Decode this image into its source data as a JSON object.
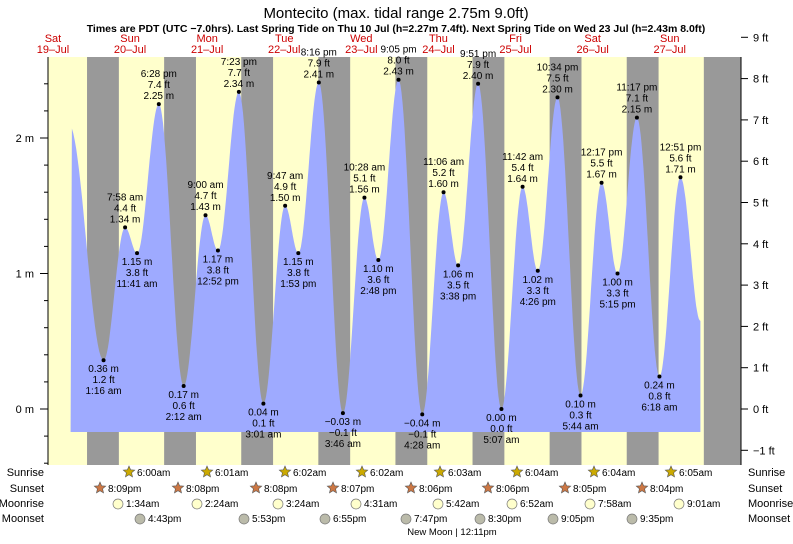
{
  "chart_data": {
    "type": "area",
    "title": "Montecito (max. tidal range 2.75m 9.0ft)",
    "subtitle": "Times are PDT (UTC −7.0hrs). Last Spring Tide on Thu 10 Jul (h=2.27m 7.4ft). Next Spring Tide on Wed 23 Jul (h=2.43m 8.0ft)",
    "days": [
      {
        "dow": "Sat",
        "date": "19–Jul",
        "dark_before": false
      },
      {
        "dow": "Sun",
        "date": "20–Jul",
        "dark_before": true
      },
      {
        "dow": "Mon",
        "date": "21–Jul",
        "dark_before": true
      },
      {
        "dow": "Tue",
        "date": "22–Jul",
        "dark_before": true
      },
      {
        "dow": "Wed",
        "date": "23–Jul",
        "dark_before": true
      },
      {
        "dow": "Thu",
        "date": "24–Jul",
        "dark_before": true
      },
      {
        "dow": "Fri",
        "date": "25–Jul",
        "dark_before": true
      },
      {
        "dow": "Sat",
        "date": "26–Jul",
        "dark_before": true
      },
      {
        "dow": "Sun",
        "date": "27–Jul",
        "dark_before": true
      }
    ],
    "y_axis_m": {
      "ticks": [
        "0 m",
        "1 m",
        "2 m"
      ],
      "values": [
        0,
        1,
        2
      ]
    },
    "y_axis_ft": {
      "ticks": [
        "−1 ft",
        "0 ft",
        "1 ft",
        "2 ft",
        "3 ft",
        "4 ft",
        "5 ft",
        "6 ft",
        "7 ft",
        "8 ft",
        "9 ft"
      ],
      "values": [
        -1,
        0,
        1,
        2,
        3,
        4,
        5,
        6,
        7,
        8,
        9
      ]
    },
    "ylim_m": [
      -0.6,
      2.6
    ],
    "tides": [
      {
        "time": "1:16 am",
        "m": "0.36 m",
        "ft": "1.2 ft",
        "value": 0.36,
        "type": "low"
      },
      {
        "time": "7:58 am",
        "m": "1.34 m",
        "ft": "4.4 ft",
        "value": 1.34,
        "type": "high"
      },
      {
        "time": "11:41 am",
        "m": "1.15 m",
        "ft": "3.8 ft",
        "value": 1.15,
        "type": "low"
      },
      {
        "time": "6:28 pm",
        "m": "2.25 m",
        "ft": "7.4 ft",
        "value": 2.25,
        "type": "high"
      },
      {
        "time": "2:12 am",
        "m": "0.17 m",
        "ft": "0.6 ft",
        "value": 0.17,
        "type": "low"
      },
      {
        "time": "9:00 am",
        "m": "1.43 m",
        "ft": "4.7 ft",
        "value": 1.43,
        "type": "high"
      },
      {
        "time": "12:52 pm",
        "m": "1.17 m",
        "ft": "3.8 ft",
        "value": 1.17,
        "type": "low"
      },
      {
        "time": "7:23 pm",
        "m": "2.34 m",
        "ft": "7.7 ft",
        "value": 2.34,
        "type": "high"
      },
      {
        "time": "3:01 am",
        "m": "0.04 m",
        "ft": "0.1 ft",
        "value": 0.04,
        "type": "low"
      },
      {
        "time": "9:47 am",
        "m": "1.50 m",
        "ft": "4.9 ft",
        "value": 1.5,
        "type": "high"
      },
      {
        "time": "1:53 pm",
        "m": "1.15 m",
        "ft": "3.8 ft",
        "value": 1.15,
        "type": "low"
      },
      {
        "time": "8:16 pm",
        "m": "2.41 m",
        "ft": "7.9 ft",
        "value": 2.41,
        "type": "high"
      },
      {
        "time": "3:46 am",
        "m": "−0.03 m",
        "ft": "−0.1 ft",
        "value": -0.03,
        "type": "low"
      },
      {
        "time": "10:28 am",
        "m": "1.56 m",
        "ft": "5.1 ft",
        "value": 1.56,
        "type": "high"
      },
      {
        "time": "2:48 pm",
        "m": "1.10 m",
        "ft": "3.6 ft",
        "value": 1.1,
        "type": "low"
      },
      {
        "time": "9:05 pm",
        "m": "2.43 m",
        "ft": "8.0 ft",
        "value": 2.43,
        "type": "high"
      },
      {
        "time": "4:28 am",
        "m": "−0.04 m",
        "ft": "−0.1 ft",
        "value": -0.04,
        "type": "low"
      },
      {
        "time": "11:06 am",
        "m": "1.60 m",
        "ft": "5.2 ft",
        "value": 1.6,
        "type": "high"
      },
      {
        "time": "3:38 pm",
        "m": "1.06 m",
        "ft": "3.5 ft",
        "value": 1.06,
        "type": "low"
      },
      {
        "time": "9:51 pm",
        "m": "2.40 m",
        "ft": "7.9 ft",
        "value": 2.4,
        "type": "high"
      },
      {
        "time": "5:07 am",
        "m": "0.00 m",
        "ft": "0.0 ft",
        "value": 0.0,
        "type": "low"
      },
      {
        "time": "11:42 am",
        "m": "1.64 m",
        "ft": "5.4 ft",
        "value": 1.64,
        "type": "high"
      },
      {
        "time": "4:26 pm",
        "m": "1.02 m",
        "ft": "3.3 ft",
        "value": 1.02,
        "type": "low"
      },
      {
        "time": "10:34 pm",
        "m": "2.30 m",
        "ft": "7.5 ft",
        "value": 2.3,
        "type": "high"
      },
      {
        "time": "5:44 am",
        "m": "0.10 m",
        "ft": "0.3 ft",
        "value": 0.1,
        "type": "low"
      },
      {
        "time": "12:17 pm",
        "m": "1.67 m",
        "ft": "5.5 ft",
        "value": 1.67,
        "type": "high"
      },
      {
        "time": "5:15 pm",
        "m": "1.00 m",
        "ft": "3.3 ft",
        "value": 1.0,
        "type": "low"
      },
      {
        "time": "11:17 pm",
        "m": "2.15 m",
        "ft": "7.1 ft",
        "value": 2.15,
        "type": "high"
      },
      {
        "time": "6:18 am",
        "m": "0.24 m",
        "ft": "0.8 ft",
        "value": 0.24,
        "type": "low"
      },
      {
        "time": "12:51 pm",
        "m": "1.71 m",
        "ft": "5.6 ft",
        "value": 1.71,
        "type": "high"
      }
    ],
    "row_labels": [
      "Sunrise",
      "Sunset",
      "Moonrise",
      "Moonset"
    ],
    "sunrise": [
      "6:00am",
      "6:01am",
      "6:02am",
      "6:02am",
      "6:03am",
      "6:04am",
      "6:04am",
      "6:05am"
    ],
    "sunset": [
      "8:09pm",
      "8:08pm",
      "8:08pm",
      "8:07pm",
      "8:06pm",
      "8:06pm",
      "8:05pm",
      "8:04pm"
    ],
    "moonrise": [
      "1:34am",
      "2:24am",
      "3:24am",
      "4:31am",
      "5:42am",
      "6:52am",
      "7:58am",
      "9:01am"
    ],
    "moonset": [
      "4:43pm",
      "5:53pm",
      "6:55pm",
      "7:47pm",
      "8:30pm",
      "9:05pm",
      "9:35pm"
    ],
    "new_moon": "New Moon | 12:11pm",
    "colors": {
      "water": "#9eaaff",
      "day": "#ffffcc",
      "night": "#999999",
      "sun": "#ccaa00",
      "sunset": "#cc7744",
      "moon": "#ffffcc",
      "moonset": "#bbbbaa",
      "day_label": "#cc0000"
    }
  }
}
